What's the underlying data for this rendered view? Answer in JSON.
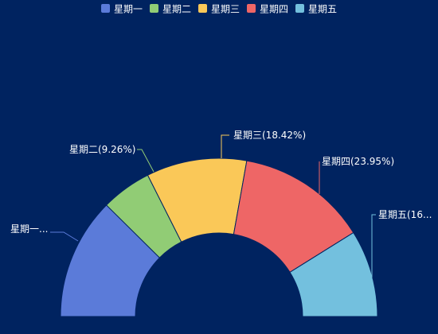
{
  "colors": {
    "background": "#002360",
    "slice_border": "#002360"
  },
  "chart_data": {
    "type": "pie",
    "variant": "half-donut",
    "title": "",
    "categories": [
      "星期一",
      "星期二",
      "星期三",
      "星期四",
      "星期五"
    ],
    "values": [
      22.37,
      9.26,
      18.42,
      23.95,
      16.0
    ],
    "labels": [
      "星期一...",
      "星期二(9.26%)",
      "星期三(18.42%)",
      "星期四(23.95%)",
      "星期五(16..."
    ],
    "colors": [
      "#5b7bd9",
      "#91cc75",
      "#fac858",
      "#ee6666",
      "#73c0de"
    ],
    "legend": {
      "position": "top",
      "entries": [
        "星期一",
        "星期二",
        "星期三",
        "星期四",
        "星期五"
      ]
    }
  }
}
